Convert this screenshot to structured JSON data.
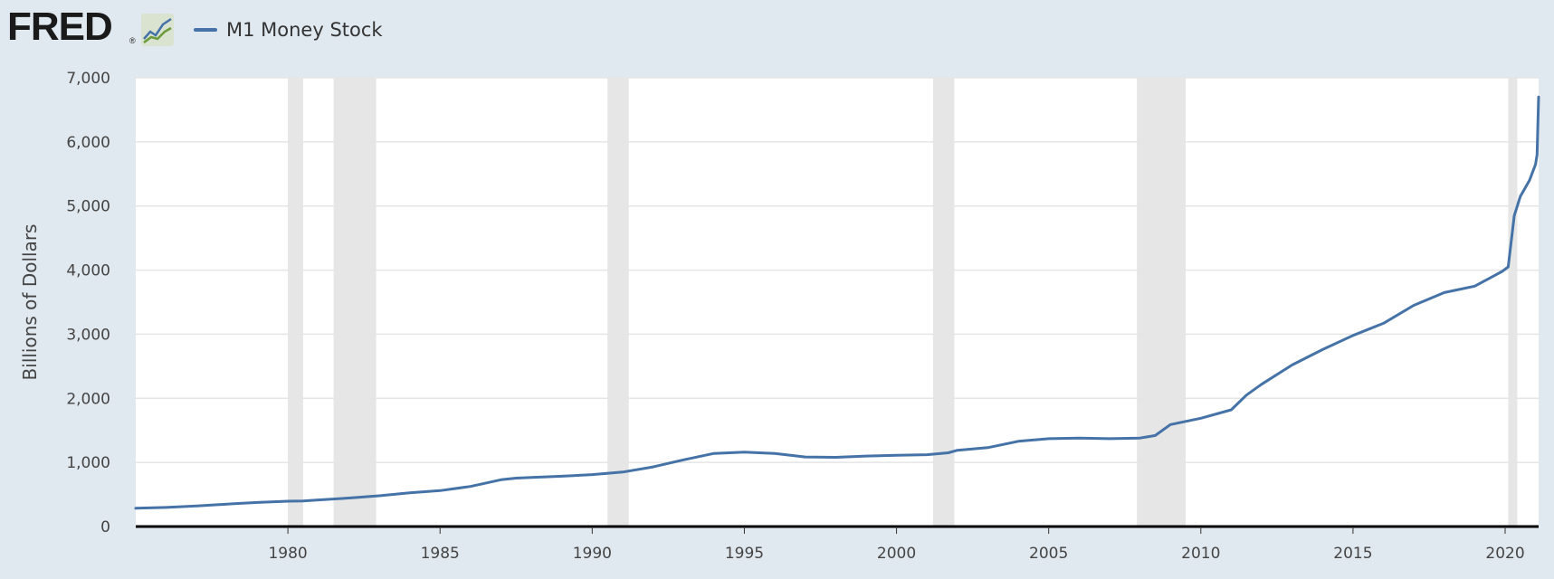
{
  "header": {
    "logo_text": "FRED",
    "logo_registered": "®",
    "logo_icon": "line-graph-icon",
    "legend_label": "M1 Money Stock",
    "series_color": "#4572a7"
  },
  "chart_data": {
    "type": "line",
    "title": "",
    "xlabel": "",
    "ylabel": "Billions of Dollars",
    "xlim": [
      1975.0,
      2021.1
    ],
    "ylim": [
      0,
      7000
    ],
    "x_ticks": [
      1980,
      1985,
      1990,
      1995,
      2000,
      2005,
      2010,
      2015,
      2020
    ],
    "x_tick_labels": [
      "1980",
      "1985",
      "1990",
      "1995",
      "2000",
      "2005",
      "2010",
      "2015",
      "2020"
    ],
    "y_ticks": [
      0,
      1000,
      2000,
      3000,
      4000,
      5000,
      6000,
      7000
    ],
    "y_tick_labels": [
      "0",
      "1,000",
      "2,000",
      "3,000",
      "4,000",
      "5,000",
      "6,000",
      "7,000"
    ],
    "grid": true,
    "legend_position": "top-left",
    "recessions": [
      [
        1980.0,
        1980.5
      ],
      [
        1981.5,
        1982.9
      ],
      [
        1990.5,
        1991.2
      ],
      [
        2001.2,
        2001.9
      ],
      [
        2007.9,
        2009.5
      ],
      [
        2020.1,
        2020.4
      ]
    ],
    "series": [
      {
        "name": "M1 Money Stock",
        "color": "#4572a7",
        "points": [
          [
            1975.0,
            285
          ],
          [
            1976.0,
            298
          ],
          [
            1977.0,
            320
          ],
          [
            1978.0,
            350
          ],
          [
            1979.0,
            375
          ],
          [
            1980.0,
            395
          ],
          [
            1980.5,
            400
          ],
          [
            1981.0,
            415
          ],
          [
            1982.0,
            445
          ],
          [
            1983.0,
            480
          ],
          [
            1984.0,
            525
          ],
          [
            1985.0,
            560
          ],
          [
            1986.0,
            625
          ],
          [
            1987.0,
            730
          ],
          [
            1987.5,
            755
          ],
          [
            1988.0,
            765
          ],
          [
            1989.0,
            785
          ],
          [
            1990.0,
            810
          ],
          [
            1991.0,
            850
          ],
          [
            1992.0,
            930
          ],
          [
            1993.0,
            1040
          ],
          [
            1994.0,
            1140
          ],
          [
            1995.0,
            1160
          ],
          [
            1996.0,
            1140
          ],
          [
            1997.0,
            1085
          ],
          [
            1998.0,
            1080
          ],
          [
            1999.0,
            1100
          ],
          [
            2000.0,
            1110
          ],
          [
            2001.0,
            1120
          ],
          [
            2001.7,
            1150
          ],
          [
            2002.0,
            1190
          ],
          [
            2003.0,
            1230
          ],
          [
            2004.0,
            1330
          ],
          [
            2005.0,
            1370
          ],
          [
            2006.0,
            1380
          ],
          [
            2007.0,
            1370
          ],
          [
            2008.0,
            1380
          ],
          [
            2008.5,
            1420
          ],
          [
            2009.0,
            1590
          ],
          [
            2010.0,
            1690
          ],
          [
            2011.0,
            1820
          ],
          [
            2011.5,
            2050
          ],
          [
            2012.0,
            2220
          ],
          [
            2013.0,
            2520
          ],
          [
            2014.0,
            2760
          ],
          [
            2015.0,
            2980
          ],
          [
            2016.0,
            3170
          ],
          [
            2017.0,
            3450
          ],
          [
            2018.0,
            3650
          ],
          [
            2019.0,
            3750
          ],
          [
            2019.9,
            3980
          ],
          [
            2020.1,
            4050
          ],
          [
            2020.3,
            4850
          ],
          [
            2020.5,
            5150
          ],
          [
            2020.8,
            5400
          ],
          [
            2021.0,
            5650
          ],
          [
            2021.05,
            5800
          ],
          [
            2021.1,
            6700
          ]
        ]
      }
    ]
  }
}
